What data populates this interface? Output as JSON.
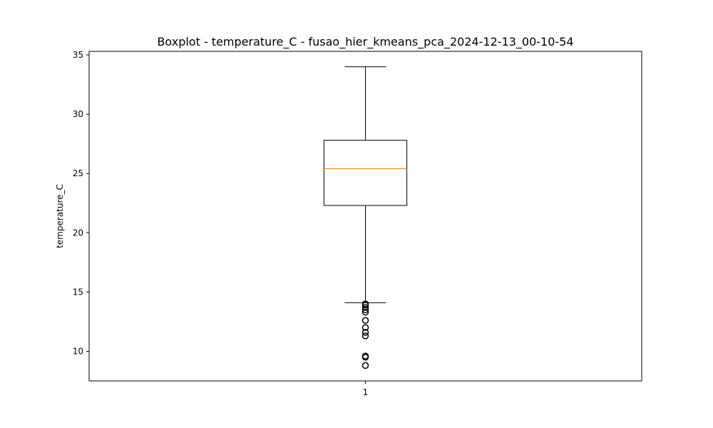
{
  "chart_data": {
    "type": "boxplot",
    "title": "Boxplot - temperature_C - fusao_hier_kmeans_pca_2024-12-13_00-10-54",
    "xlabel": "",
    "ylabel": "temperature_C",
    "categories": [
      "1"
    ],
    "ylim": [
      7.5,
      35.3
    ],
    "yticks": [
      10,
      15,
      20,
      25,
      30,
      35
    ],
    "grid": false,
    "boxes": [
      {
        "category": "1",
        "whisker_low": 14.1,
        "q1": 22.3,
        "median": 25.4,
        "q3": 27.8,
        "whisker_high": 34.0,
        "outliers": [
          14.0,
          13.9,
          13.7,
          13.5,
          13.3,
          12.6,
          12.0,
          11.6,
          11.3,
          9.6,
          9.5,
          8.8
        ]
      }
    ],
    "colors": {
      "box": "#000000",
      "median": "#ff7f0e",
      "whisker": "#000000",
      "outlier": "#000000"
    }
  }
}
